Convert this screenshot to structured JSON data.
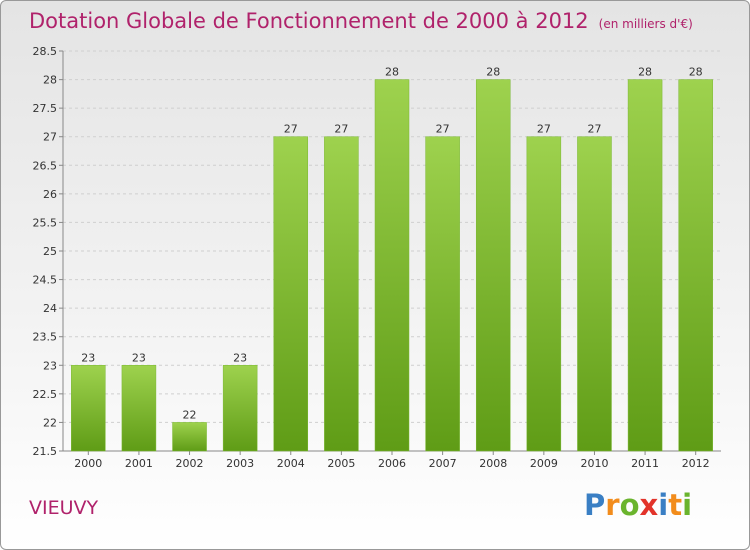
{
  "title": "Dotation Globale de Fonctionnement de 2000 à 2012",
  "unit_note": "(en milliers d'€)",
  "commune": "VIEUVY",
  "logo": {
    "text": "Proxiti",
    "letters": [
      {
        "ch": "P",
        "color": "#3a7fc4"
      },
      {
        "ch": "r",
        "color": "#f28c1c"
      },
      {
        "ch": "o",
        "color": "#6ab42d"
      },
      {
        "ch": "x",
        "color": "#e2332a"
      },
      {
        "ch": "i",
        "color": "#3a7fc4"
      },
      {
        "ch": "t",
        "color": "#f28c1c"
      },
      {
        "ch": "i",
        "color": "#6ab42d"
      }
    ]
  },
  "chart_data": {
    "type": "bar",
    "categories": [
      "2000",
      "2001",
      "2002",
      "2003",
      "2004",
      "2005",
      "2006",
      "2007",
      "2008",
      "2009",
      "2010",
      "2011",
      "2012"
    ],
    "values": [
      23,
      23,
      22,
      23,
      27,
      27,
      28,
      27,
      28,
      27,
      27,
      28,
      28
    ],
    "value_labels": [
      "23",
      "23",
      "22",
      "23",
      "27",
      "27",
      "28",
      "27",
      "28",
      "27",
      "27",
      "28",
      "28"
    ],
    "ylim": [
      21.5,
      28.5
    ],
    "yticks": [
      21.5,
      22,
      22.5,
      23,
      23.5,
      24,
      24.5,
      25,
      25.5,
      26,
      26.5,
      27,
      27.5,
      28,
      28.5
    ],
    "ytick_labels": [
      "21.5",
      "22",
      "22.5",
      "23",
      "23.5",
      "24",
      "24.5",
      "25",
      "25.5",
      "26",
      "26.5",
      "27",
      "27.5",
      "28",
      "28.5"
    ],
    "grid": true,
    "bar_color": "#8cc63f",
    "title": "Dotation Globale de Fonctionnement de 2000 à 2012",
    "xlabel": "",
    "ylabel": ""
  }
}
